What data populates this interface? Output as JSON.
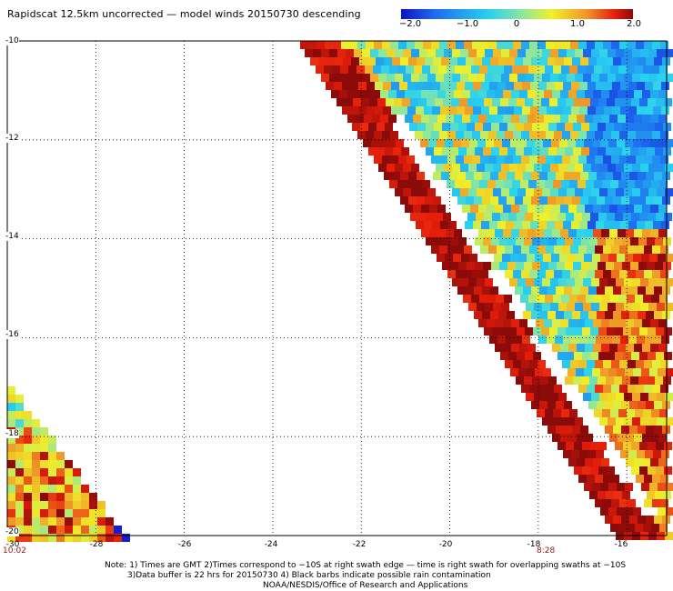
{
  "title": "Rapidscat 12.5km uncorrected — model winds 20150730 descending",
  "colorbar": {
    "labels": [
      "−2.0",
      "−1.0",
      "0",
      "1.0",
      "2.0"
    ],
    "range": [
      -2.0,
      2.0
    ],
    "colors": [
      "#1010c8",
      "#1e6ef0",
      "#28d2f0",
      "#8ce6a0",
      "#f0f028",
      "#f09628",
      "#e61e0a",
      "#8b0a0a"
    ]
  },
  "axes": {
    "lon_range": [
      -30,
      -15.1
    ],
    "lat_range": [
      -20,
      -10
    ],
    "lat_ticks": [
      "-10",
      "-12",
      "-14",
      "-16",
      "-18",
      "-20"
    ],
    "lon_ticks": [
      "-28",
      "-26",
      "-24",
      "-22",
      "-20",
      "-18",
      "-16"
    ],
    "left_lon": "-30"
  },
  "times": {
    "left": "10:02",
    "right": "8:28"
  },
  "notes": [
    "Note: 1) Times are GMT 2)Times correspond to −10S at right swath edge — time is right swath for overlapping swaths at −10S",
    "3)Data buffer is 22 hrs for 20150730 4) Black barbs indicate possible rain contamination",
    "NOAA/NESDIS/Office of Research and Applications"
  ]
}
